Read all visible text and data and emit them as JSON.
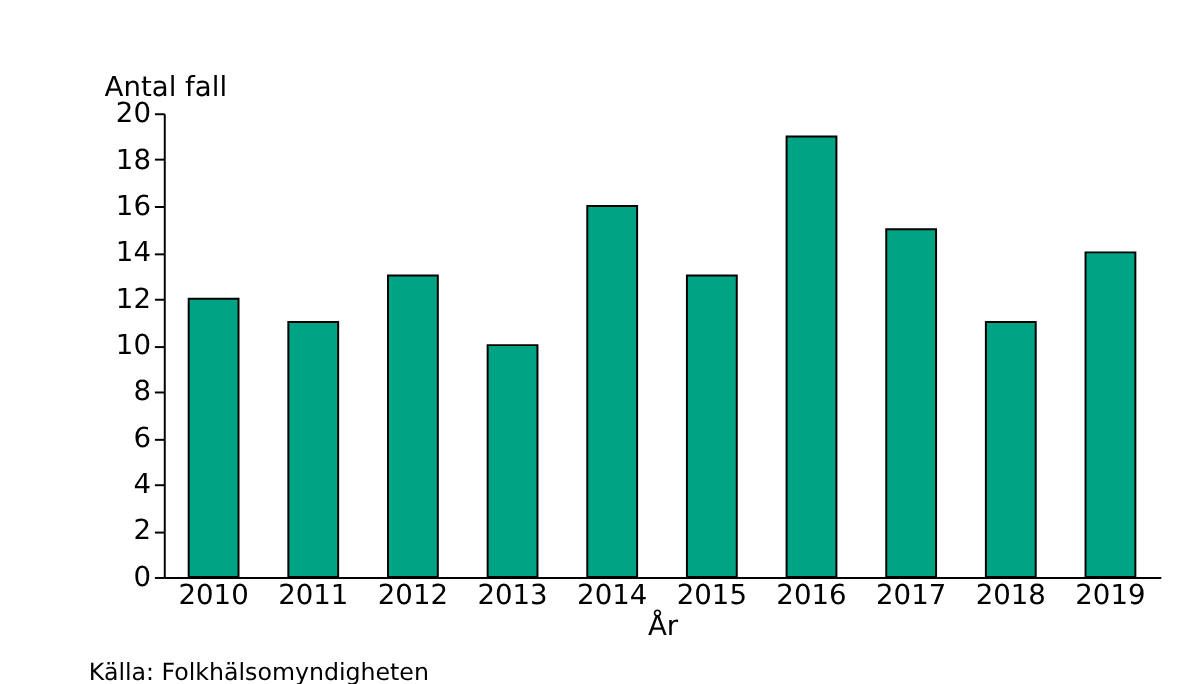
{
  "chart_data": {
    "type": "bar",
    "categories": [
      "2010",
      "2011",
      "2012",
      "2013",
      "2014",
      "2015",
      "2016",
      "2017",
      "2018",
      "2019"
    ],
    "values": [
      12,
      11,
      13,
      10,
      16,
      13,
      19,
      15,
      11,
      14
    ],
    "color": "#00a383",
    "ylabel": "Antal fall",
    "xlabel": "År",
    "ylim": [
      0,
      20
    ],
    "yticks": [
      0,
      2,
      4,
      6,
      8,
      10,
      12,
      14,
      16,
      18,
      20
    ],
    "grid": false,
    "annotations": [
      "Källa: Folkhälsomyndigheten"
    ]
  }
}
